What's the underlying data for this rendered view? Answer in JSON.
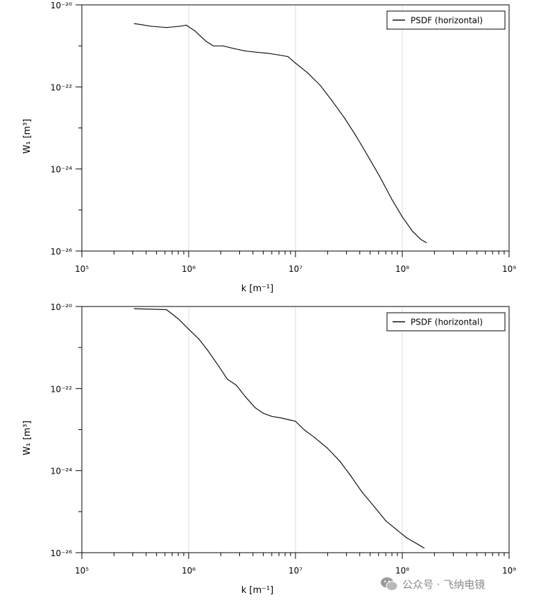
{
  "chart_data": [
    {
      "type": "line",
      "legend": "PSDF (horizontal)",
      "legend_position": "top-right",
      "grid": true,
      "x_scale": "log",
      "y_scale": "log",
      "xlim": [
        100000,
        1000000000
      ],
      "ylim": [
        1e-26,
        1e-20
      ],
      "xlabel": "k [m⁻¹]",
      "ylabel": "W₁ [m³]",
      "x_tick_labels": [
        "10⁵",
        "10⁶",
        "10⁷",
        "10⁸",
        "10⁹"
      ],
      "y_tick_labels": [
        "10⁻²⁰",
        "10⁻²²",
        "10⁻²⁴",
        "10⁻²⁶"
      ],
      "series": [
        {
          "name": "PSDF (horizontal)",
          "x": [
            310000,
            450000,
            620000,
            820000,
            950000,
            1150000,
            1450000,
            1700000,
            2100000,
            2700000,
            3400000,
            4300000,
            5500000,
            7000000,
            8500000,
            10000000,
            13000000,
            17000000,
            22000000,
            29000000,
            37000000,
            48000000,
            62000000,
            80000000,
            100000000,
            125000000,
            150000000,
            168000000
          ],
          "y": [
            3.5e-21,
            3e-21,
            2.8e-21,
            3e-21,
            3.2e-21,
            2.3e-21,
            1.3e-21,
            1e-21,
            1e-21,
            8.5e-22,
            7.5e-22,
            7e-22,
            6.6e-22,
            6e-22,
            5.5e-22,
            3.8e-22,
            2.2e-22,
            1.1e-22,
            4.6e-23,
            1.7e-23,
            6.3e-24,
            2e-24,
            6.3e-25,
            1.8e-25,
            6.8e-26,
            3e-26,
            1.9e-26,
            1.6e-26
          ]
        }
      ]
    },
    {
      "type": "line",
      "legend": "PSDF (horizontal)",
      "legend_position": "top-right",
      "grid": true,
      "x_scale": "log",
      "y_scale": "log",
      "xlim": [
        100000,
        1000000000
      ],
      "ylim": [
        1e-26,
        1e-20
      ],
      "xlabel": "k [m⁻¹]",
      "ylabel": "W₁ [m³]",
      "x_tick_labels": [
        "10⁵",
        "10⁶",
        "10⁷",
        "10⁸",
        "10⁹"
      ],
      "y_tick_labels": [
        "10⁻²⁰",
        "10⁻²²",
        "10⁻²⁴",
        "10⁻²⁶"
      ],
      "series": [
        {
          "name": "PSDF (horizontal)",
          "x": [
            310000,
            450000,
            620000,
            800000,
            1000000,
            1250000,
            1500000,
            1900000,
            2300000,
            2800000,
            3400000,
            4200000,
            5000000,
            6000000,
            7500000,
            9000000,
            10000000,
            12000000,
            15000000,
            20000000,
            26000000,
            33000000,
            42000000,
            55000000,
            70000000,
            90000000,
            110000000,
            125000000,
            140000000,
            160000000
          ],
          "y": [
            8.8e-21,
            8.6e-21,
            8.4e-21,
            5e-21,
            2.8e-21,
            1.6e-21,
            8.7e-22,
            3.6e-22,
            1.7e-22,
            1.2e-22,
            6.3e-23,
            3.4e-23,
            2.5e-23,
            2.1e-23,
            1.9e-23,
            1.7e-23,
            1.6e-23,
            1e-23,
            6.5e-24,
            3.5e-24,
            1.7e-24,
            7.4e-25,
            3e-25,
            1.3e-25,
            6e-26,
            3.5e-26,
            2.3e-26,
            1.9e-26,
            1.6e-26,
            1.3e-26
          ]
        }
      ]
    }
  ],
  "watermark": {
    "text": "公众号 · 飞纳电镜",
    "icon": "wechat-icon"
  }
}
